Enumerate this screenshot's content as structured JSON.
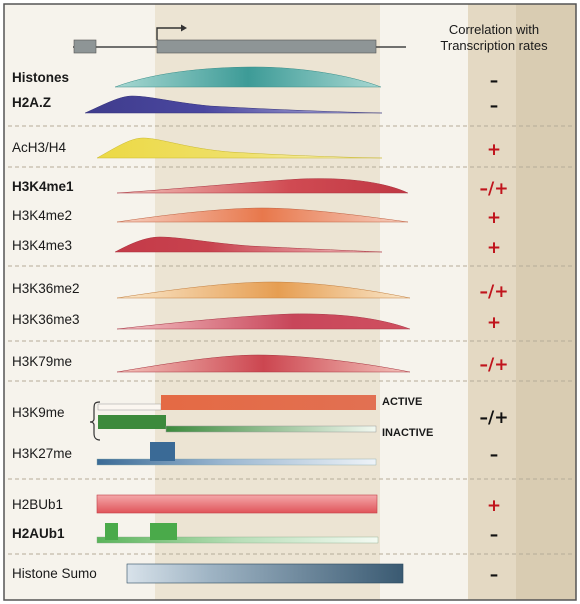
{
  "header": {
    "correlation_line1": "Correlation with",
    "correlation_line2": "Transcription rates"
  },
  "colors": {
    "background": "#f6f3ec",
    "gene_band": "#ece4d3",
    "right_col": "#e6dcc8",
    "edge_col": "#d6c9ae",
    "border": "#555555",
    "plus": "#c0141c",
    "minus": "#111111"
  },
  "rows": [
    {
      "id": "histones",
      "label": "Histones",
      "corr": "–",
      "corr_kind": "minus",
      "shape": "bell",
      "color_main": "#4aa9a3",
      "color_light": "#a8d8d2",
      "peak": 0.5
    },
    {
      "id": "h2az",
      "label": "H2A.Z",
      "corr": "–",
      "corr_kind": "minus",
      "shape": "tss-peak",
      "color_main": "#3f3c8c",
      "color_light": "#9a98c8",
      "peak": 0.18
    },
    {
      "id": "ach3h4",
      "label": "AcH3/H4",
      "corr": "+",
      "corr_kind": "plus",
      "shape": "tss-peak",
      "color_main": "#e8d84a",
      "color_light": "#f6eea8",
      "peak": 0.2
    },
    {
      "id": "h3k4me1",
      "label": "H3K4me1",
      "corr": "–/+",
      "corr_kind": "mixed",
      "shape": "rise",
      "color_main": "#c8464e",
      "color_light": "#f0b2aa",
      "peak": 0.8
    },
    {
      "id": "h3k4me2",
      "label": "H3K4me2",
      "corr": "+",
      "corr_kind": "plus",
      "shape": "bell",
      "color_main": "#e0704e",
      "color_light": "#f6c8b0",
      "peak": 0.5
    },
    {
      "id": "h3k4me3",
      "label": "H3K4me3",
      "corr": "+",
      "corr_kind": "plus",
      "shape": "tss-peak",
      "color_main": "#c43a48",
      "color_light": "#ee9ea0",
      "peak": 0.22
    },
    {
      "id": "h3k36me2",
      "label": "H3K36me2",
      "corr": "–/+",
      "corr_kind": "mixed",
      "shape": "bell",
      "color_main": "#e49a4c",
      "color_light": "#f8dcb4",
      "peak": 0.55
    },
    {
      "id": "h3k36me3",
      "label": "H3K36me3",
      "corr": "+",
      "corr_kind": "plus",
      "shape": "rise",
      "color_main": "#c8465a",
      "color_light": "#f0aeb0",
      "peak": 0.7
    },
    {
      "id": "h3k79me",
      "label": "H3K79me",
      "corr": "–/+",
      "corr_kind": "mixed",
      "shape": "bell",
      "color_main": "#c8464e",
      "color_light": "#f0b0aa",
      "peak": 0.48
    },
    {
      "id": "h3k9me",
      "label": "H3K9me",
      "corr": "–/+",
      "corr_kind": "mixed-black",
      "shape": "split-bars",
      "active_label": "ACTIVE",
      "inactive_label": "INACTIVE",
      "color_main": "#e06a4a",
      "color_alt": "#3c8a3c"
    },
    {
      "id": "h3k27me",
      "label": "H3K27me",
      "corr": "–",
      "corr_kind": "minus",
      "shape": "step-bar",
      "color_main": "#3a6a96",
      "color_light": "#c8d6e6"
    },
    {
      "id": "h2bub1",
      "label": "H2BUb1",
      "corr": "+",
      "corr_kind": "plus",
      "shape": "flat-bar",
      "color_main": "#e05a5e",
      "color_light": "#f2a8a8"
    },
    {
      "id": "h2aub1",
      "label": "H2AUb1",
      "corr": "–",
      "corr_kind": "minus",
      "shape": "spikes",
      "color_main": "#4aaa4a",
      "color_light": "#c8e6c8"
    },
    {
      "id": "histone_sumo",
      "label": "Histone Sumo",
      "corr": "–",
      "corr_kind": "minus",
      "shape": "long-bar",
      "color_main": "#3a5a72",
      "color_light": "#c8d4de"
    }
  ]
}
